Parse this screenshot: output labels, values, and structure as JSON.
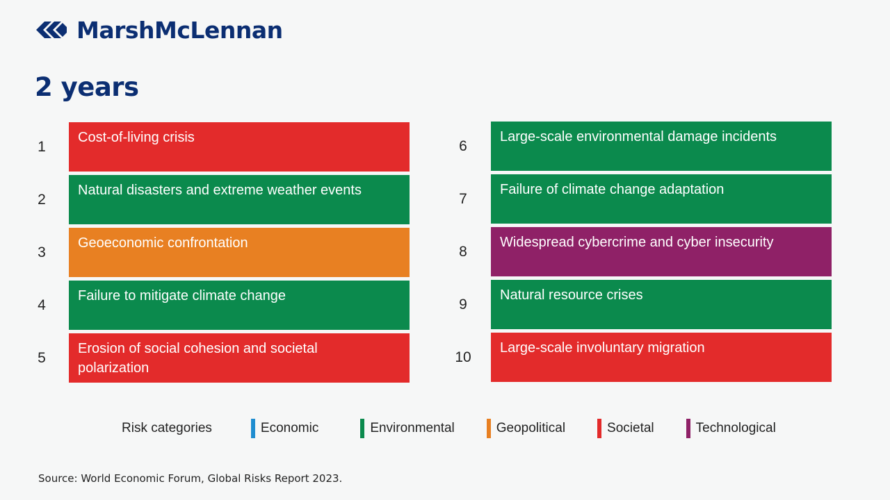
{
  "brand": {
    "name": "MarshMcLennan"
  },
  "title": "2 years",
  "colors": {
    "Economic": "#1f8dd0",
    "Environmental": "#0b8a4d",
    "Geopolitical": "#e88022",
    "Societal": "#e32b2b",
    "Technological": "#8f2167"
  },
  "risks": [
    {
      "rank": "1",
      "label": "Cost-of-living crisis",
      "category": "Societal"
    },
    {
      "rank": "2",
      "label": "Natural disasters and extreme weather events",
      "category": "Environmental"
    },
    {
      "rank": "3",
      "label": "Geoeconomic confrontation",
      "category": "Geopolitical"
    },
    {
      "rank": "4",
      "label": "Failure to mitigate climate change",
      "category": "Environmental"
    },
    {
      "rank": "5",
      "label": "Erosion of social cohesion and societal polarization",
      "category": "Societal"
    },
    {
      "rank": "6",
      "label": "Large-scale environmental damage incidents",
      "category": "Environmental"
    },
    {
      "rank": "7",
      "label": "Failure of climate change adaptation",
      "category": "Environmental"
    },
    {
      "rank": "8",
      "label": "Widespread cybercrime and cyber insecurity",
      "category": "Technological"
    },
    {
      "rank": "9",
      "label": "Natural resource crises",
      "category": "Environmental"
    },
    {
      "rank": "10",
      "label": "Large-scale involuntary migration",
      "category": "Societal"
    }
  ],
  "legend": {
    "label": "Risk categories",
    "items": [
      "Economic",
      "Environmental",
      "Geopolitical",
      "Societal",
      "Technological"
    ]
  },
  "source": "Source: World Economic Forum, Global Risks Report 2023."
}
